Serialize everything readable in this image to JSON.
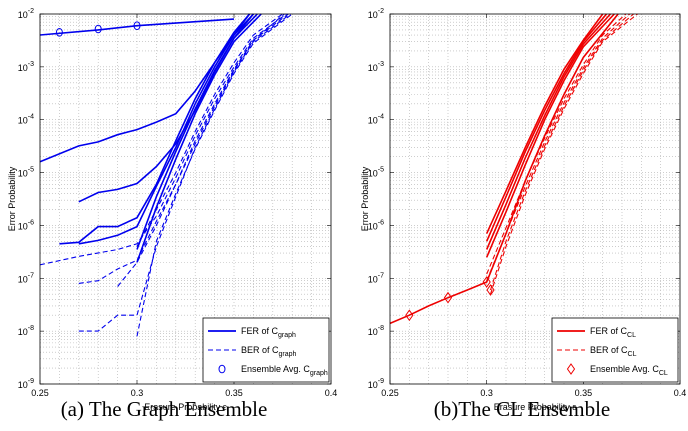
{
  "chart_data": [
    {
      "type": "line",
      "caption": "(a) The Graph Ensemble",
      "xlabel": "Erasure Probability ε",
      "ylabel": "Error Probability",
      "xlim": [
        0.25,
        0.4
      ],
      "ylim": [
        1e-09,
        0.01
      ],
      "yscale": "log",
      "grid": true,
      "legend_position": "bottom-right",
      "xticks": [
        "0.25",
        "0.3",
        "0.35",
        "0.4"
      ],
      "color": "#0000ee",
      "legend": [
        {
          "label": "FER of C",
          "sub": "graph",
          "style": "solid"
        },
        {
          "label": "BER of C",
          "sub": "graph",
          "style": "dashed"
        },
        {
          "label": "Ensemble Avg. C",
          "sub": "graph",
          "style": "marker-circle"
        }
      ],
      "series": [
        {
          "kind": "fer",
          "points": [
            [
              0.25,
              1.6e-05
            ],
            [
              0.27,
              3.2e-05
            ],
            [
              0.28,
              3.8e-05
            ],
            [
              0.29,
              5.2e-05
            ],
            [
              0.3,
              6.5e-05
            ],
            [
              0.31,
              9e-05
            ],
            [
              0.32,
              0.00013
            ],
            [
              0.33,
              0.00035
            ],
            [
              0.34,
              0.0012
            ],
            [
              0.35,
              0.004
            ],
            [
              0.358,
              0.01
            ]
          ]
        },
        {
          "kind": "fer",
          "points": [
            [
              0.27,
              2.8e-06
            ],
            [
              0.28,
              4.2e-06
            ],
            [
              0.29,
              4.8e-06
            ],
            [
              0.3,
              6.2e-06
            ],
            [
              0.31,
              1.3e-05
            ],
            [
              0.32,
              3.5e-05
            ],
            [
              0.33,
              0.00015
            ],
            [
              0.34,
              0.0008
            ],
            [
              0.35,
              0.0035
            ],
            [
              0.36,
              0.01
            ]
          ]
        },
        {
          "kind": "fer",
          "points": [
            [
              0.26,
              4.5e-07
            ],
            [
              0.27,
              4.8e-07
            ],
            [
              0.28,
              9.5e-07
            ],
            [
              0.29,
              9.5e-07
            ],
            [
              0.3,
              1.4e-06
            ],
            [
              0.31,
              6e-06
            ],
            [
              0.32,
              4e-05
            ],
            [
              0.33,
              0.00025
            ],
            [
              0.34,
              0.0012
            ],
            [
              0.35,
              0.0045
            ],
            [
              0.358,
              0.01
            ]
          ]
        },
        {
          "kind": "fer",
          "points": [
            [
              0.27,
              4.5e-07
            ],
            [
              0.28,
              5.2e-07
            ],
            [
              0.29,
              6.5e-07
            ],
            [
              0.3,
              9.5e-07
            ],
            [
              0.31,
              5.5e-06
            ],
            [
              0.32,
              3e-05
            ],
            [
              0.33,
              0.0002
            ],
            [
              0.34,
              0.001
            ],
            [
              0.35,
              0.004
            ],
            [
              0.36,
              0.01
            ]
          ]
        },
        {
          "kind": "fer",
          "points": [
            [
              0.3,
              3.5e-07
            ],
            [
              0.31,
              3.5e-06
            ],
            [
              0.32,
              2.5e-05
            ],
            [
              0.33,
              0.00016
            ],
            [
              0.34,
              0.00085
            ],
            [
              0.35,
              0.0035
            ],
            [
              0.362,
              0.01
            ]
          ]
        },
        {
          "kind": "fer",
          "points": [
            [
              0.3,
              2e-07
            ],
            [
              0.31,
              2.2e-06
            ],
            [
              0.32,
              1.8e-05
            ],
            [
              0.33,
              0.00013
            ],
            [
              0.34,
              0.0007
            ],
            [
              0.35,
              0.003
            ],
            [
              0.364,
              0.01
            ]
          ]
        },
        {
          "kind": "fer",
          "points": [
            [
              0.25,
              0.004
            ],
            [
              0.28,
              0.005
            ],
            [
              0.3,
              0.006
            ],
            [
              0.35,
              0.008
            ]
          ]
        },
        {
          "kind": "ber",
          "points": [
            [
              0.25,
              1.8e-07
            ],
            [
              0.27,
              2.6e-07
            ],
            [
              0.29,
              3.5e-07
            ],
            [
              0.3,
              4.5e-07
            ],
            [
              0.31,
              1.5e-06
            ],
            [
              0.32,
              8e-06
            ],
            [
              0.33,
              5e-05
            ],
            [
              0.34,
              0.00025
            ],
            [
              0.35,
              0.001
            ],
            [
              0.36,
              0.0035
            ],
            [
              0.377,
              0.01
            ]
          ]
        },
        {
          "kind": "ber",
          "points": [
            [
              0.27,
              8e-08
            ],
            [
              0.28,
              9e-08
            ],
            [
              0.29,
              1.5e-07
            ],
            [
              0.3,
              2.2e-07
            ],
            [
              0.31,
              1.2e-06
            ],
            [
              0.32,
              6e-06
            ],
            [
              0.33,
              4e-05
            ],
            [
              0.34,
              0.0002
            ],
            [
              0.35,
              0.0009
            ],
            [
              0.36,
              0.0032
            ],
            [
              0.378,
              0.01
            ]
          ]
        },
        {
          "kind": "ber",
          "points": [
            [
              0.27,
              1e-08
            ],
            [
              0.28,
              1e-08
            ],
            [
              0.29,
              2e-08
            ],
            [
              0.3,
              2e-08
            ],
            [
              0.31,
              4e-07
            ],
            [
              0.32,
              3.5e-06
            ],
            [
              0.33,
              3e-05
            ],
            [
              0.34,
              0.00016
            ],
            [
              0.35,
              0.0008
            ],
            [
              0.36,
              0.003
            ],
            [
              0.379,
              0.01
            ]
          ]
        },
        {
          "kind": "ber",
          "points": [
            [
              0.29,
              7e-08
            ],
            [
              0.3,
              2e-07
            ],
            [
              0.31,
              1e-06
            ],
            [
              0.32,
              6e-06
            ],
            [
              0.33,
              3.5e-05
            ],
            [
              0.34,
              0.00018
            ],
            [
              0.35,
              0.00085
            ],
            [
              0.36,
              0.0032
            ],
            [
              0.376,
              0.01
            ]
          ]
        },
        {
          "kind": "ber",
          "points": [
            [
              0.3,
              8e-09
            ],
            [
              0.31,
              5e-07
            ],
            [
              0.32,
              4e-06
            ],
            [
              0.33,
              2.8e-05
            ],
            [
              0.34,
              0.00015
            ],
            [
              0.35,
              0.00075
            ],
            [
              0.36,
              0.0028
            ],
            [
              0.38,
              0.01
            ]
          ]
        },
        {
          "kind": "ber",
          "points": [
            [
              0.3,
              4e-07
            ],
            [
              0.31,
              2e-06
            ],
            [
              0.32,
              1e-05
            ],
            [
              0.33,
              6e-05
            ],
            [
              0.34,
              0.0003
            ],
            [
              0.35,
              0.0012
            ],
            [
              0.36,
              0.004
            ],
            [
              0.375,
              0.01
            ]
          ]
        }
      ],
      "markers": {
        "shape": "circle",
        "points": [
          [
            0.26,
            0.0045
          ],
          [
            0.28,
            0.0052
          ],
          [
            0.3,
            0.006
          ]
        ]
      }
    },
    {
      "type": "line",
      "caption": "(b)The CL Ensemble",
      "xlabel": "Erasure Probability ε",
      "ylabel": "Error Probability",
      "xlim": [
        0.25,
        0.4
      ],
      "ylim": [
        1e-09,
        0.01
      ],
      "yscale": "log",
      "grid": true,
      "legend_position": "bottom-right",
      "xticks": [
        "0.25",
        "0.3",
        "0.35",
        "0.4"
      ],
      "color": "#ee0000",
      "legend": [
        {
          "label": "FER of C",
          "sub": "CL",
          "style": "solid"
        },
        {
          "label": "BER of C",
          "sub": "CL",
          "style": "dashed"
        },
        {
          "label": "Ensemble Avg. C",
          "sub": "CL",
          "style": "marker-diamond"
        }
      ],
      "series": [
        {
          "kind": "fer",
          "points": [
            [
              0.3,
              7e-07
            ],
            [
              0.31,
              4.5e-06
            ],
            [
              0.32,
              3e-05
            ],
            [
              0.33,
              0.00018
            ],
            [
              0.34,
              0.0009
            ],
            [
              0.35,
              0.0032
            ],
            [
              0.36,
              0.01
            ]
          ]
        },
        {
          "kind": "fer",
          "points": [
            [
              0.3,
              5e-07
            ],
            [
              0.31,
              3.5e-06
            ],
            [
              0.32,
              2.5e-05
            ],
            [
              0.33,
              0.00015
            ],
            [
              0.34,
              0.00075
            ],
            [
              0.35,
              0.003
            ],
            [
              0.362,
              0.01
            ]
          ]
        },
        {
          "kind": "fer",
          "points": [
            [
              0.3,
              3.5e-07
            ],
            [
              0.31,
              2.5e-06
            ],
            [
              0.32,
              1.9e-05
            ],
            [
              0.33,
              0.00012
            ],
            [
              0.34,
              0.00065
            ],
            [
              0.35,
              0.0027
            ],
            [
              0.364,
              0.01
            ]
          ]
        },
        {
          "kind": "fer",
          "points": [
            [
              0.3,
              2.5e-07
            ],
            [
              0.31,
              1.8e-06
            ],
            [
              0.32,
              1.4e-05
            ],
            [
              0.33,
              0.0001
            ],
            [
              0.34,
              0.00055
            ],
            [
              0.35,
              0.0024
            ],
            [
              0.366,
              0.01
            ]
          ]
        },
        {
          "kind": "fer",
          "points": [
            [
              0.25,
              1.4e-08
            ],
            [
              0.26,
              2e-08
            ],
            [
              0.27,
              3e-08
            ],
            [
              0.28,
              4.3e-08
            ],
            [
              0.29,
              6e-08
            ],
            [
              0.3,
              8.5e-08
            ],
            [
              0.31,
              7e-07
            ],
            [
              0.32,
              7e-06
            ],
            [
              0.33,
              5e-05
            ],
            [
              0.34,
              0.0003
            ],
            [
              0.35,
              0.0015
            ],
            [
              0.368,
              0.01
            ]
          ]
        },
        {
          "kind": "ber",
          "points": [
            [
              0.3,
              1.2e-07
            ],
            [
              0.31,
              9e-07
            ],
            [
              0.32,
              7e-06
            ],
            [
              0.33,
              4.5e-05
            ],
            [
              0.34,
              0.00025
            ],
            [
              0.35,
              0.0011
            ],
            [
              0.36,
              0.004
            ],
            [
              0.372,
              0.01
            ]
          ]
        },
        {
          "kind": "ber",
          "points": [
            [
              0.3,
              9e-08
            ],
            [
              0.31,
              7e-07
            ],
            [
              0.32,
              5.5e-06
            ],
            [
              0.33,
              3.8e-05
            ],
            [
              0.34,
              0.00021
            ],
            [
              0.35,
              0.00095
            ],
            [
              0.36,
              0.0035
            ],
            [
              0.374,
              0.01
            ]
          ]
        },
        {
          "kind": "ber",
          "points": [
            [
              0.302,
              6e-08
            ],
            [
              0.31,
              5e-07
            ],
            [
              0.32,
              4.5e-06
            ],
            [
              0.33,
              3.2e-05
            ],
            [
              0.34,
              0.00018
            ],
            [
              0.35,
              0.00085
            ],
            [
              0.36,
              0.0032
            ],
            [
              0.376,
              0.01
            ]
          ]
        },
        {
          "kind": "ber",
          "points": [
            [
              0.302,
              5e-08
            ],
            [
              0.31,
              4e-07
            ],
            [
              0.32,
              3.8e-06
            ],
            [
              0.33,
              2.8e-05
            ],
            [
              0.34,
              0.00016
            ],
            [
              0.35,
              0.00075
            ],
            [
              0.36,
              0.003
            ],
            [
              0.378,
              0.01
            ]
          ]
        }
      ],
      "markers": {
        "shape": "diamond",
        "points": [
          [
            0.26,
            2e-08
          ],
          [
            0.28,
            4.3e-08
          ],
          [
            0.3,
            8.5e-08
          ],
          [
            0.302,
            6e-08
          ]
        ]
      }
    }
  ]
}
